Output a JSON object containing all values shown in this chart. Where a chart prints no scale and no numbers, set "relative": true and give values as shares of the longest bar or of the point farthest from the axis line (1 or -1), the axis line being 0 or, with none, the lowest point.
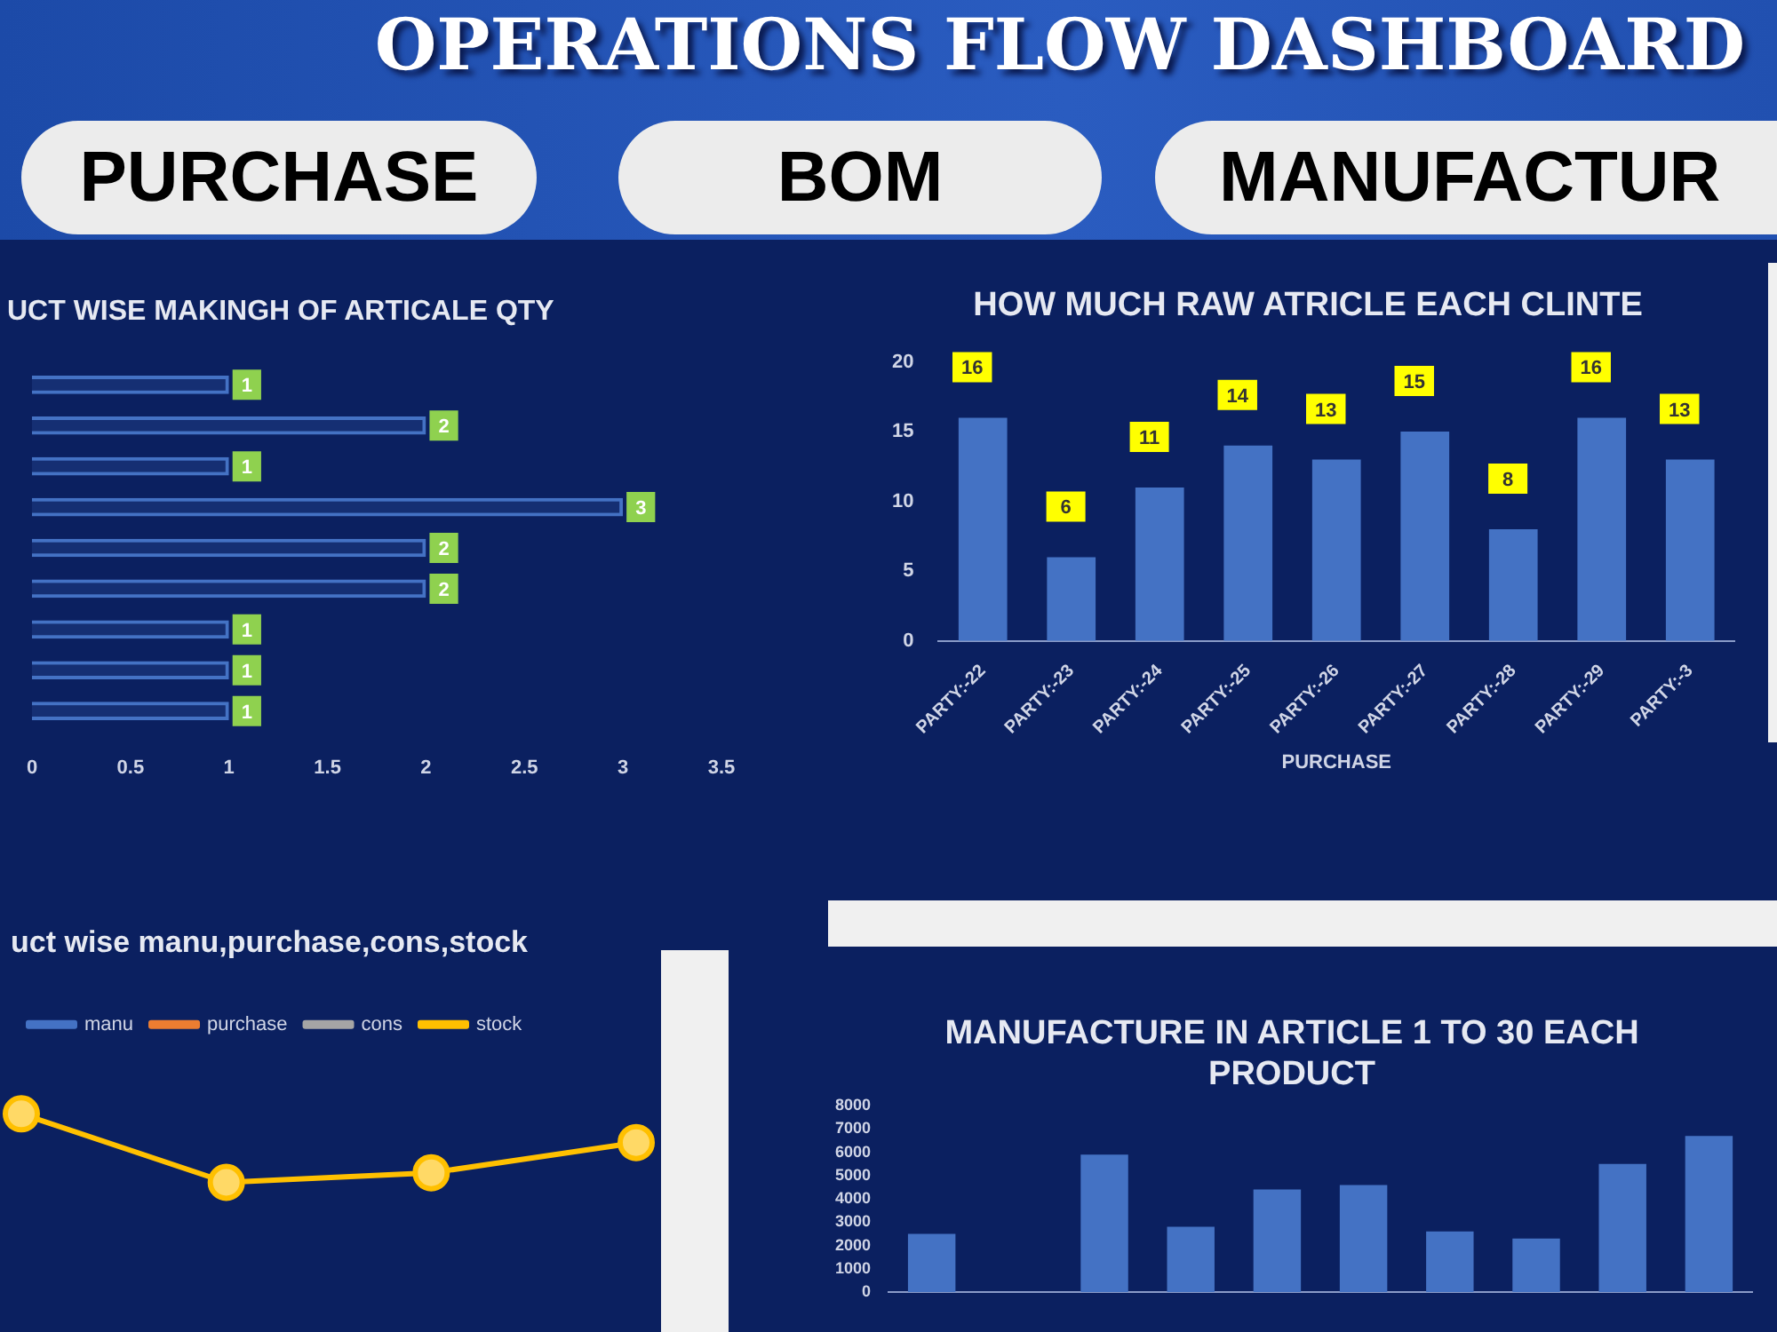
{
  "chart_data": [
    {
      "type": "other",
      "title": "OPERATIONS FLOW DASHBOARD",
      "annotations": [
        "PURCHASE",
        "BOM",
        "MANUFACTUR"
      ]
    },
    {
      "type": "bar",
      "orientation": "horizontal",
      "title": "UCT WISE MAKINGH OF ARTICALE QTY",
      "categories": [
        null,
        null,
        null,
        null,
        null,
        null,
        null,
        null,
        null
      ],
      "values": [
        1,
        2,
        1,
        3,
        2,
        2,
        1,
        1,
        1
      ],
      "color": "#4472c4",
      "xlim": [
        0,
        3.5
      ],
      "xticks": [
        0,
        0.5,
        1,
        1.5,
        2,
        2.5,
        3,
        3.5
      ],
      "data_labels": true
    },
    {
      "type": "bar",
      "title": "HOW MUCH RAW ATRICLE EACH CLINTE",
      "xlabel": "PURCHASE",
      "categories": [
        "PARTY:-22",
        "PARTY:-23",
        "PARTY:-24",
        "PARTY:-25",
        "PARTY:-26",
        "PARTY:-27",
        "PARTY:-28",
        "PARTY:-29",
        "PARTY:-3"
      ],
      "values": [
        16,
        6,
        11,
        14,
        13,
        15,
        8,
        16,
        13
      ],
      "color": "#4472c4",
      "ylim": [
        0,
        20
      ],
      "yticks": [
        0,
        5,
        10,
        15,
        20
      ],
      "data_labels": true
    },
    {
      "type": "line",
      "title": "uct wise manu,purchase,cons,stock",
      "relative": true,
      "legend": "top",
      "marker": "circle",
      "categories": [
        null,
        null,
        null,
        null
      ],
      "series": [
        {
          "name": "manu",
          "color": "#4472c4",
          "values": [
            null,
            null,
            null,
            null
          ]
        },
        {
          "name": "purchase",
          "color": "#ed7d31",
          "values": [
            null,
            null,
            null,
            null
          ]
        },
        {
          "name": "cons",
          "color": "#a5a5a5",
          "values": [
            null,
            null,
            null,
            null
          ]
        },
        {
          "name": "stock",
          "color": "#ffc000",
          "values": [
            1,
            0,
            0.14,
            0.58
          ]
        }
      ]
    },
    {
      "type": "bar",
      "title": "MANUFACTURE IN ARTICLE 1 TO 30 EACH PRODUCT",
      "categories": [
        null,
        null,
        null,
        null,
        null,
        null,
        null,
        null,
        null,
        null
      ],
      "values": [
        2500,
        null,
        5900,
        2800,
        4400,
        4600,
        2600,
        2300,
        5500,
        6700
      ],
      "color": "#4472c4",
      "ylim": [
        0,
        8000
      ],
      "yticks": [
        0,
        1000,
        2000,
        3000,
        4000,
        5000,
        6000,
        7000,
        8000
      ]
    }
  ]
}
